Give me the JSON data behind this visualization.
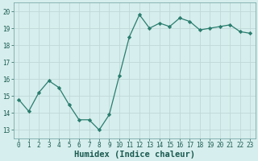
{
  "x": [
    0,
    1,
    2,
    3,
    4,
    5,
    6,
    7,
    8,
    9,
    10,
    11,
    12,
    13,
    14,
    15,
    16,
    17,
    18,
    19,
    20,
    21,
    22,
    23
  ],
  "y": [
    14.8,
    14.1,
    15.2,
    15.9,
    15.5,
    14.5,
    13.6,
    13.6,
    13.0,
    13.9,
    16.2,
    18.5,
    19.8,
    19.0,
    19.3,
    19.1,
    19.6,
    19.4,
    18.9,
    19.0,
    19.1,
    19.2,
    18.8,
    18.7
  ],
  "line_color": "#2a7d6e",
  "marker": "D",
  "marker_size": 2.2,
  "bg_color": "#d6eeed",
  "grid_color": "#c0d8d8",
  "xlabel": "Humidex (Indice chaleur)",
  "ylim": [
    12.5,
    20.5
  ],
  "xlim": [
    -0.5,
    23.5
  ],
  "yticks": [
    13,
    14,
    15,
    16,
    17,
    18,
    19,
    20
  ],
  "xticks": [
    0,
    1,
    2,
    3,
    4,
    5,
    6,
    7,
    8,
    9,
    10,
    11,
    12,
    13,
    14,
    15,
    16,
    17,
    18,
    19,
    20,
    21,
    22,
    23
  ],
  "tick_fontsize": 5.5,
  "xlabel_fontsize": 7.5
}
